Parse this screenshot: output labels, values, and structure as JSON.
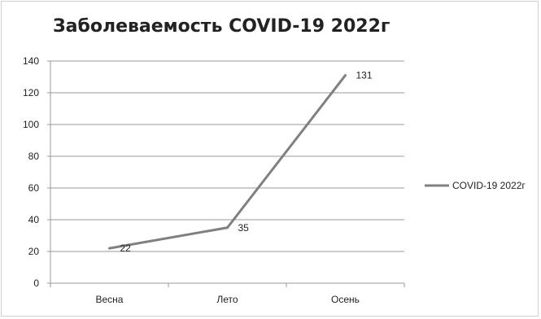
{
  "chart_data": {
    "type": "line",
    "title": "Заболеваемость COVID-19 2022г",
    "categories": [
      "Весна",
      "Лето",
      "Осень"
    ],
    "series": [
      {
        "name": "COVID-19 2022г",
        "values": [
          22,
          35,
          131
        ],
        "color": "#808080"
      }
    ],
    "ylim": [
      0,
      140
    ],
    "yticks": [
      0,
      20,
      40,
      60,
      80,
      100,
      120,
      140
    ],
    "grid": true,
    "legend": "right"
  }
}
